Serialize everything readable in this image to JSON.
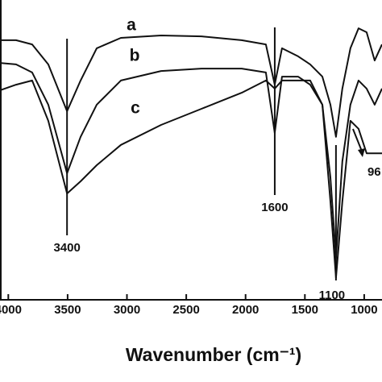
{
  "chart_data": {
    "type": "line",
    "xlabel": "Wavenumber (cm⁻¹)",
    "x": [
      4070,
      3935,
      3799,
      3663,
      3505,
      3391,
      3255,
      3051,
      2712,
      2372,
      2033,
      1829,
      1754,
      1693,
      1557,
      1455,
      1353,
      1285,
      1238,
      1184,
      1116,
      1048,
      980,
      912,
      850
    ],
    "xlim": [
      4070,
      850
    ],
    "ylim": [
      0,
      100
    ],
    "xticks": [
      4000,
      3500,
      3000,
      2500,
      2000,
      1500,
      1000
    ],
    "series": [
      {
        "name": "a",
        "color": "#111111",
        "values": [
          86.5,
          86.5,
          85.1,
          78.4,
          62.7,
          73.0,
          83.8,
          87.3,
          88.1,
          87.8,
          86.5,
          85.1,
          71.6,
          83.8,
          81.1,
          78.4,
          74.3,
          64.9,
          54.1,
          70.3,
          83.8,
          90.5,
          89.2,
          79.7,
          85.1
        ]
      },
      {
        "name": "b",
        "color": "#111111",
        "values": [
          78.9,
          78.4,
          75.7,
          64.9,
          41.9,
          54.1,
          64.9,
          73.0,
          76.2,
          77.0,
          77.0,
          75.7,
          55.4,
          74.3,
          74.3,
          71.6,
          64.9,
          40.5,
          13.5,
          45.9,
          64.9,
          73.0,
          70.3,
          64.9,
          70.3
        ]
      },
      {
        "name": "c",
        "color": "#111111",
        "values": [
          69.7,
          71.6,
          73.0,
          59.5,
          35.1,
          39.2,
          44.6,
          51.4,
          58.1,
          63.5,
          68.9,
          73.0,
          70.3,
          73.0,
          73.0,
          73.0,
          64.9,
          32.4,
          6.8,
          32.4,
          59.5,
          56.8,
          48.6,
          48.6,
          48.6
        ]
      }
    ],
    "annotations": [
      {
        "text": "3400",
        "x": 3505
      },
      {
        "text": "1600",
        "x": 1754
      },
      {
        "text": "1100",
        "x": 1238
      },
      {
        "text": "96",
        "x": 959
      }
    ]
  }
}
